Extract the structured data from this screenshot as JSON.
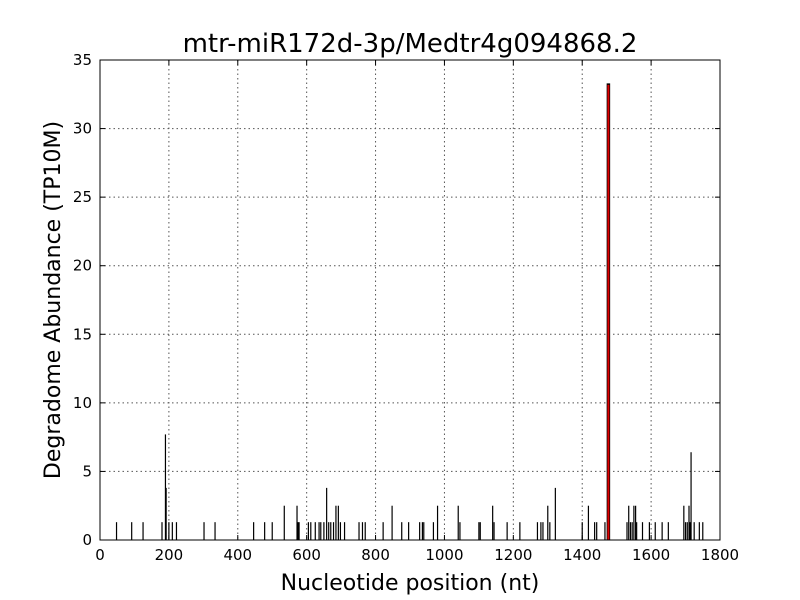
{
  "chart_data": {
    "type": "bar",
    "title": "mtr-miR172d-3p/Medtr4g094868.2",
    "xlabel": "Nucleotide position (nt)",
    "ylabel": "Degradome Abundance (TP10M)",
    "xlim": [
      0,
      1800
    ],
    "ylim": [
      0,
      35
    ],
    "xticks": [
      "0",
      "200",
      "400",
      "600",
      "800",
      "1000",
      "1200",
      "1400",
      "1600",
      "1800"
    ],
    "yticks": [
      "0",
      "5",
      "10",
      "15",
      "20",
      "25",
      "30",
      "35"
    ],
    "grid": true,
    "colors": {
      "background": "#bf0000",
      "target": "#dd0000"
    },
    "series": [
      {
        "role": "background",
        "x": [
          48,
          92,
          125,
          180,
          190,
          192,
          200,
          210,
          222,
          302,
          334,
          446,
          478,
          500,
          535,
          572,
          575,
          578,
          605,
          612,
          625,
          636,
          641,
          650,
          658,
          664,
          670,
          678,
          685,
          692,
          698,
          710,
          752,
          762,
          770,
          822,
          848,
          876,
          896,
          928,
          936,
          940,
          968,
          980,
          1040,
          1045,
          1100,
          1104,
          1140,
          1144,
          1182,
          1219,
          1270,
          1280,
          1286,
          1300,
          1306,
          1322,
          1400,
          1418,
          1436,
          1442,
          1466,
          1475,
          1530,
          1535,
          1540,
          1545,
          1550,
          1555,
          1558,
          1575,
          1595,
          1612,
          1632,
          1650,
          1695,
          1700,
          1705,
          1710,
          1713,
          1716,
          1725,
          1740,
          1750
        ],
        "y": [
          1.3,
          1.3,
          1.3,
          1.3,
          7.7,
          3.8,
          1.3,
          1.3,
          1.3,
          1.3,
          1.3,
          1.3,
          1.3,
          1.3,
          2.5,
          2.5,
          1.3,
          1.3,
          1.3,
          1.3,
          1.3,
          1.3,
          1.3,
          1.3,
          3.8,
          1.3,
          1.3,
          1.3,
          2.5,
          2.5,
          1.3,
          1.3,
          1.3,
          1.3,
          1.3,
          1.3,
          2.5,
          1.3,
          1.3,
          1.3,
          1.3,
          1.3,
          1.3,
          2.5,
          2.5,
          1.3,
          1.3,
          1.3,
          2.5,
          1.3,
          1.3,
          1.3,
          1.3,
          1.3,
          1.3,
          2.5,
          1.3,
          3.8,
          1.3,
          2.5,
          1.3,
          1.3,
          1.3,
          1.3,
          1.3,
          2.5,
          1.3,
          1.3,
          2.5,
          2.5,
          1.3,
          1.3,
          1.3,
          1.3,
          1.3,
          1.3,
          2.5,
          1.3,
          1.3,
          2.5,
          1.3,
          6.4,
          1.3,
          1.3,
          1.3
        ]
      },
      {
        "role": "target",
        "x": [
          1476
        ],
        "y": [
          33.3
        ]
      }
    ]
  }
}
